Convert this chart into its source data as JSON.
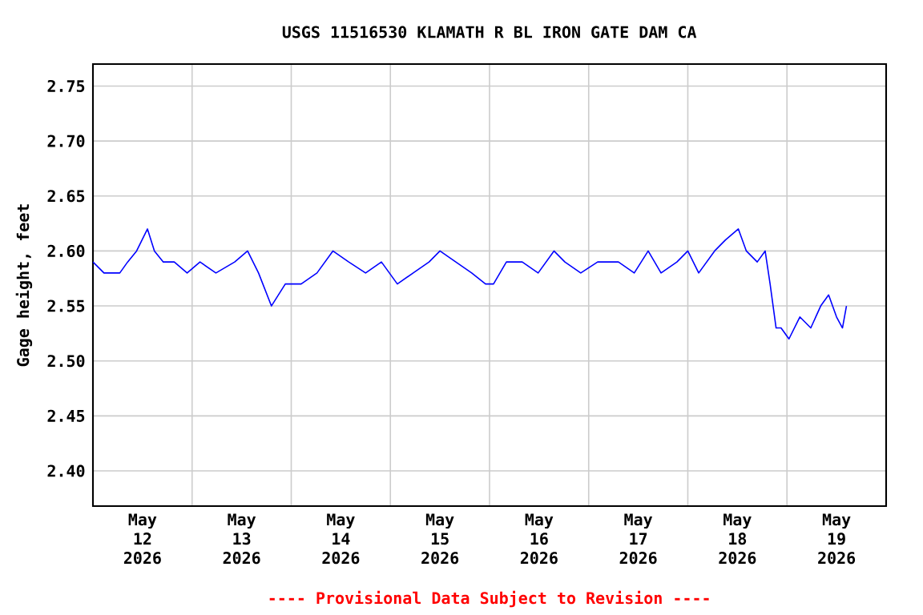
{
  "chart_data": {
    "type": "line",
    "title": "USGS 11516530 KLAMATH R BL IRON GATE DAM CA",
    "ylabel": "Gage height, feet",
    "annotations": [
      "---- Provisional Data Subject to Revision ----"
    ],
    "xlim": [
      "2026-05-12T00:00",
      "2026-05-20T00:00"
    ],
    "xticks": [
      {
        "value": "2026-05-12T12:00",
        "label": "May 12 2026"
      },
      {
        "value": "2026-05-13T00:00",
        "label": null
      },
      {
        "value": "2026-05-13T12:00",
        "label": "May 13 2026"
      },
      {
        "value": "2026-05-14T00:00",
        "label": null
      },
      {
        "value": "2026-05-14T12:00",
        "label": "May 14 2026"
      },
      {
        "value": "2026-05-15T00:00",
        "label": null
      },
      {
        "value": "2026-05-15T12:00",
        "label": "May 15 2026"
      },
      {
        "value": "2026-05-16T00:00",
        "label": null
      },
      {
        "value": "2026-05-16T12:00",
        "label": "May 16 2026"
      },
      {
        "value": "2026-05-17T00:00",
        "label": null
      },
      {
        "value": "2026-05-17T12:00",
        "label": "May 17 2026"
      },
      {
        "value": "2026-05-18T00:00",
        "label": null
      },
      {
        "value": "2026-05-18T12:00",
        "label": "May 18 2026"
      },
      {
        "value": "2026-05-19T00:00",
        "label": null
      },
      {
        "value": "2026-05-19T12:00",
        "label": "May 19 2026"
      }
    ],
    "ylim": [
      2.368,
      2.77
    ],
    "yticks": [
      {
        "value": 2.4,
        "label": "2.40"
      },
      2.45,
      {
        "value": 2.5,
        "label": "2.50"
      },
      2.55,
      {
        "value": 2.6,
        "label": "2.60"
      },
      2.65,
      {
        "value": 2.7,
        "label": "2.70"
      },
      2.75
    ],
    "grid": true,
    "marker": "none",
    "line_style": "solid",
    "series": [
      {
        "color": "#0000ff",
        "x": [
          "2026-05-12T00:00",
          "2026-05-12T02:40",
          "2026-05-12T06:30",
          "2026-05-12T08:24",
          "2026-05-12T10:34",
          "2026-05-12T13:12",
          "2026-05-12T14:53",
          "2026-05-12T17:02",
          "2026-05-12T19:41",
          "2026-05-12T22:48",
          "2026-05-13T01:55",
          "2026-05-13T05:46",
          "2026-05-13T10:19",
          "2026-05-13T13:26",
          "2026-05-13T16:05",
          "2026-05-13T19:12",
          "2026-05-13T22:34",
          "2026-05-14T02:24",
          "2026-05-14T06:14",
          "2026-05-14T10:05",
          "2026-05-14T13:55",
          "2026-05-14T18:00",
          "2026-05-14T21:50",
          "2026-05-15T01:41",
          "2026-05-15T05:31",
          "2026-05-15T09:22",
          "2026-05-15T12:00",
          "2026-05-15T15:50",
          "2026-05-15T19:41",
          "2026-05-15T23:02",
          "2026-05-16T00:58",
          "2026-05-16T04:05",
          "2026-05-16T07:55",
          "2026-05-16T11:46",
          "2026-05-16T15:36",
          "2026-05-16T18:14",
          "2026-05-16T22:05",
          "2026-05-17T02:10",
          "2026-05-17T07:12",
          "2026-05-17T11:02",
          "2026-05-17T14:24",
          "2026-05-17T17:31",
          "2026-05-17T21:22",
          "2026-05-18T00:00",
          "2026-05-18T02:38",
          "2026-05-18T06:29",
          "2026-05-18T09:07",
          "2026-05-18T12:14",
          "2026-05-18T14:10",
          "2026-05-18T16:48",
          "2026-05-18T18:43",
          "2026-05-18T19:55",
          "2026-05-18T21:22",
          "2026-05-18T22:34",
          "2026-05-19T00:29",
          "2026-05-19T03:07",
          "2026-05-19T05:46",
          "2026-05-19T08:10",
          "2026-05-19T10:05",
          "2026-05-19T12:00",
          "2026-05-19T13:26",
          "2026-05-19T14:24"
        ],
        "values": [
          2.59,
          2.58,
          2.58,
          2.59,
          2.6,
          2.62,
          2.6,
          2.59,
          2.59,
          2.58,
          2.59,
          2.58,
          2.59,
          2.6,
          2.58,
          2.55,
          2.57,
          2.57,
          2.58,
          2.6,
          2.59,
          2.58,
          2.59,
          2.57,
          2.58,
          2.59,
          2.6,
          2.59,
          2.58,
          2.57,
          2.57,
          2.59,
          2.59,
          2.58,
          2.6,
          2.59,
          2.58,
          2.59,
          2.59,
          2.58,
          2.6,
          2.58,
          2.59,
          2.6,
          2.58,
          2.6,
          2.61,
          2.62,
          2.6,
          2.59,
          2.6,
          2.57,
          2.53,
          2.53,
          2.52,
          2.54,
          2.53,
          2.55,
          2.56,
          2.54,
          2.53,
          2.55
        ]
      }
    ]
  }
}
